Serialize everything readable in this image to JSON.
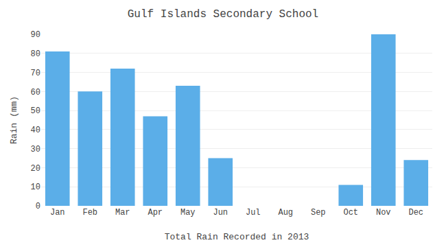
{
  "chart_data": {
    "type": "bar",
    "title": "Gulf Islands Secondary School",
    "xlabel": "Total Rain Recorded in 2013",
    "ylabel": "Rain (mm)",
    "categories": [
      "Jan",
      "Feb",
      "Mar",
      "Apr",
      "May",
      "Jun",
      "Jul",
      "Aug",
      "Sep",
      "Oct",
      "Nov",
      "Dec"
    ],
    "values": [
      81,
      60,
      72,
      47,
      63,
      25,
      0,
      0,
      0,
      11,
      90,
      24
    ],
    "color": "#5BAEE8",
    "ylim": [
      0,
      90
    ],
    "yticks": [
      0,
      10,
      20,
      30,
      40,
      50,
      60,
      70,
      80,
      90
    ],
    "grid": true
  }
}
